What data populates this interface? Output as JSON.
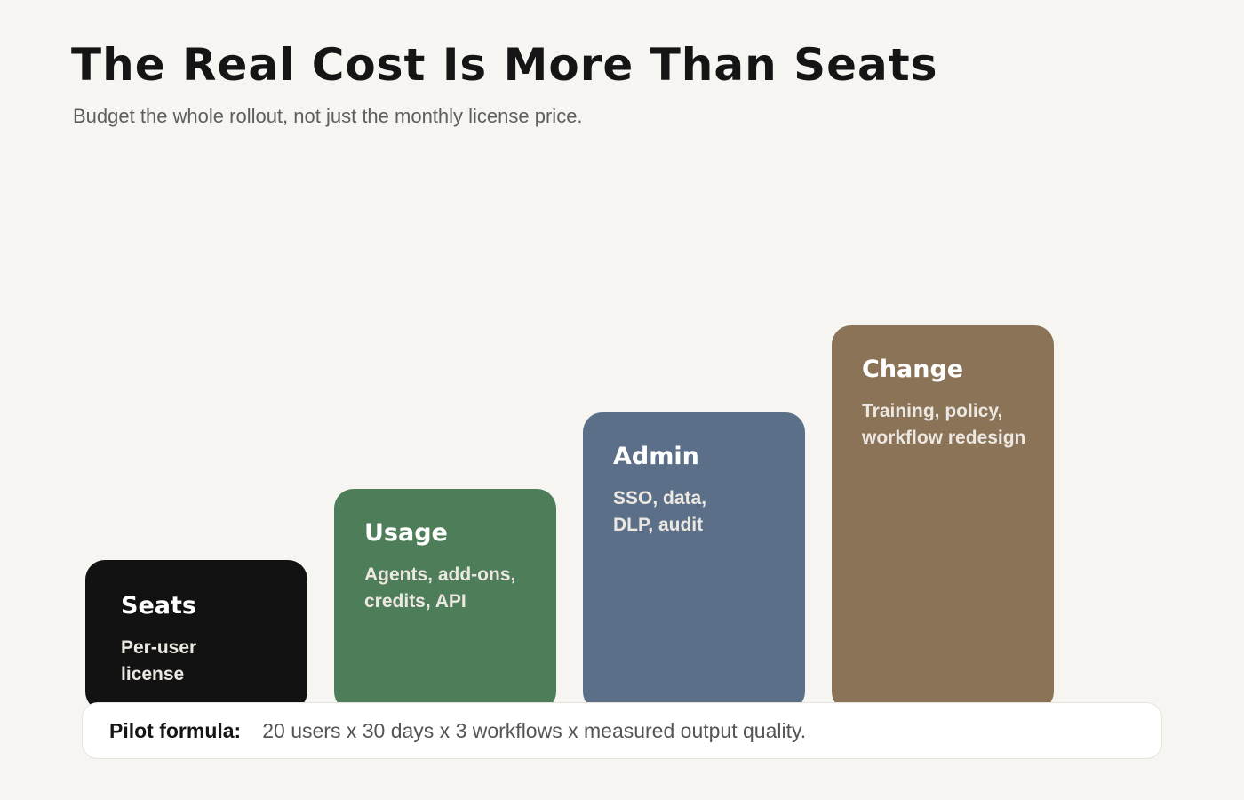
{
  "title": "The Real Cost Is More Than Seats",
  "subtitle": "Budget the whole rollout, not just the monthly license price.",
  "blocks": [
    {
      "title": "Seats",
      "desc": "Per-user\nlicense",
      "color": "#121212"
    },
    {
      "title": "Usage",
      "desc": "Agents, add-ons,\ncredits, API",
      "color": "#4e7d5a"
    },
    {
      "title": "Admin",
      "desc": "SSO, data,\nDLP, audit",
      "color": "#5b6f88"
    },
    {
      "title": "Change",
      "desc": "Training, policy,\nworkflow redesign",
      "color": "#8b7358"
    }
  ],
  "formula": {
    "label": "Pilot formula:",
    "text": "20 users x 30 days x 3 workflows x measured output quality."
  }
}
